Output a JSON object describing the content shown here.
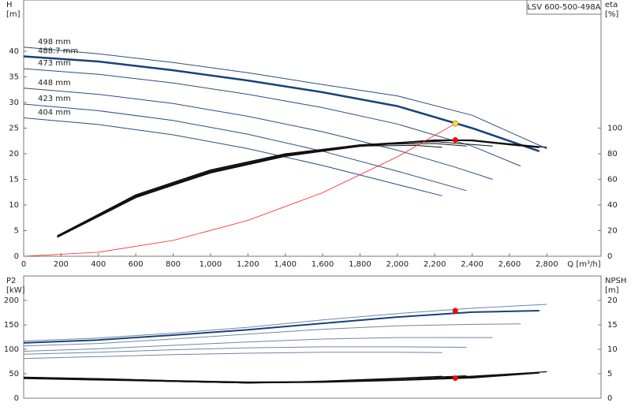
{
  "chart_data": [
    {
      "type": "line",
      "title": "LSV 600-500-498A",
      "ylabel": [
        "H",
        "[m]"
      ],
      "y2label": [
        "eta",
        "[%]"
      ],
      "xlabel": "Q [m³/h]",
      "xlim": [
        0,
        3090
      ],
      "ylim": [
        0,
        50
      ],
      "y2lim": [
        0,
        200
      ],
      "xticks": [
        0,
        200,
        400,
        600,
        800,
        {
          "value": 1000,
          "label": "1,000"
        },
        {
          "value": 1200,
          "label": "1,200"
        },
        {
          "value": 1400,
          "label": "1,400"
        },
        {
          "value": 1600,
          "label": "1,600"
        },
        {
          "value": 1800,
          "label": "1,800"
        },
        {
          "value": 2000,
          "label": "2,000"
        },
        {
          "value": 2200,
          "label": "2,200"
        },
        {
          "value": 2400,
          "label": "2,400"
        },
        {
          "value": 2600,
          "label": "2,600"
        },
        {
          "value": 2800,
          "label": "2,800"
        }
      ],
      "yticks": [
        0,
        5,
        10,
        15,
        20,
        25,
        30,
        35,
        40
      ],
      "y2ticks": [
        0,
        20,
        40,
        60,
        80,
        100
      ],
      "series": [
        {
          "name": "498 mm",
          "color": "#2b4f7e",
          "width": 1,
          "axis": "y",
          "x": [
            0,
            400,
            800,
            1200,
            1600,
            2000,
            2400,
            2800
          ],
          "values": [
            40.8,
            39.5,
            37.8,
            35.8,
            33.5,
            31.3,
            27.5,
            21
          ]
        },
        {
          "name": "488.7 mm",
          "color": "#17427a",
          "width": 2.5,
          "axis": "y",
          "x": [
            0,
            400,
            800,
            1200,
            1600,
            2000,
            2400,
            2760
          ],
          "values": [
            39,
            38,
            36.3,
            34.3,
            32,
            29.3,
            25,
            20.5
          ]
        },
        {
          "name": "473 mm",
          "color": "#2b4f7e",
          "width": 1,
          "axis": "y",
          "x": [
            0,
            400,
            800,
            1200,
            1600,
            2000,
            2400,
            2660
          ],
          "values": [
            36.6,
            35.5,
            33.8,
            31.6,
            29,
            25.8,
            21.5,
            17.6
          ]
        },
        {
          "name": "448 mm",
          "color": "#2b4f7e",
          "width": 1,
          "axis": "y",
          "x": [
            0,
            400,
            800,
            1200,
            1600,
            2000,
            2300,
            2510
          ],
          "values": [
            32.8,
            31.6,
            29.8,
            27.3,
            24.3,
            20.7,
            17.5,
            15
          ]
        },
        {
          "name": "423 mm",
          "color": "#2b4f7e",
          "width": 1,
          "axis": "y",
          "x": [
            0,
            400,
            800,
            1200,
            1600,
            2000,
            2370
          ],
          "values": [
            29.7,
            28.4,
            26.5,
            23.8,
            20.5,
            16.6,
            12.8
          ]
        },
        {
          "name": "404 mm",
          "color": "#2b4f7e",
          "width": 1,
          "axis": "y",
          "x": [
            0,
            400,
            800,
            1200,
            1600,
            2000,
            2240
          ],
          "values": [
            27,
            25.7,
            23.7,
            21,
            17.7,
            14,
            11.8
          ]
        },
        {
          "color": "#111111",
          "width": 1.2,
          "axis": "y2",
          "x": [
            180,
            600,
            1000,
            1400,
            1800,
            2200,
            2400,
            2800
          ],
          "values": [
            15,
            46,
            65,
            78,
            86,
            90,
            90.5,
            85
          ]
        },
        {
          "color": "#111111",
          "width": 2,
          "axis": "y2",
          "x": [
            180,
            600,
            1000,
            1400,
            1800,
            2200,
            2400,
            2760
          ],
          "values": [
            15,
            46,
            65.5,
            78.5,
            86,
            90.5,
            90.5,
            85
          ]
        },
        {
          "color": "#111111",
          "width": 1,
          "axis": "y2",
          "x": [
            180,
            600,
            1000,
            1400,
            1800,
            2200,
            2400,
            2660
          ],
          "values": [
            15,
            46.5,
            66,
            79,
            87,
            90.5,
            90,
            86
          ]
        },
        {
          "color": "#111111",
          "width": 1,
          "axis": "y2",
          "x": [
            180,
            600,
            1000,
            1400,
            1800,
            2200,
            2510
          ],
          "values": [
            15.5,
            47,
            66.5,
            79.5,
            87,
            89.5,
            86
          ]
        },
        {
          "color": "#111111",
          "width": 1,
          "axis": "y2",
          "x": [
            180,
            600,
            1000,
            1400,
            1800,
            2200,
            2370
          ],
          "values": [
            16,
            47.5,
            67,
            80,
            87,
            88,
            86
          ]
        },
        {
          "color": "#111111",
          "width": 1,
          "axis": "y2",
          "x": [
            180,
            600,
            1000,
            1400,
            1800,
            2100,
            2240
          ],
          "values": [
            16,
            48,
            67.5,
            80,
            86,
            86.5,
            85
          ]
        },
        {
          "color": "#ff2020",
          "width": 0.8,
          "axis": "y",
          "x": [
            0,
            400,
            800,
            1200,
            1600,
            2000,
            2310
          ],
          "values": [
            0,
            0.78,
            3.1,
            7,
            12.4,
            19.4,
            25.9
          ]
        }
      ],
      "points": [
        {
          "x": 2310,
          "value": 25.9,
          "color": "#ffd83a",
          "axis": "y"
        },
        {
          "x": 2310,
          "value": 90.8,
          "color": "#ff0000",
          "axis": "y2"
        }
      ]
    },
    {
      "type": "line",
      "ylabel": [
        "P2",
        "[kW]"
      ],
      "y2label": [
        "NPSH",
        "[m]"
      ],
      "xlim": [
        0,
        3090
      ],
      "ylim": [
        0,
        250
      ],
      "y2lim": [
        0,
        25
      ],
      "yticks": [
        0,
        50,
        100,
        150,
        200
      ],
      "y2ticks": [
        0,
        5,
        10,
        15,
        20
      ],
      "series": [
        {
          "color": "#6f86a6",
          "width": 1,
          "axis": "y",
          "x": [
            0,
            400,
            800,
            1200,
            1600,
            2000,
            2400,
            2800
          ],
          "values": [
            117,
            123,
            133,
            145,
            160,
            173,
            184,
            192
          ]
        },
        {
          "color": "#17427a",
          "width": 2,
          "axis": "y",
          "x": [
            0,
            400,
            800,
            1200,
            1600,
            2000,
            2400,
            2760
          ],
          "values": [
            113,
            119,
            129,
            140,
            153,
            166,
            176,
            179
          ]
        },
        {
          "color": "#6f86a6",
          "width": 1,
          "axis": "y",
          "x": [
            0,
            400,
            800,
            1200,
            1600,
            2000,
            2400,
            2660
          ],
          "values": [
            107,
            112,
            121,
            131,
            141,
            148,
            151,
            152
          ]
        },
        {
          "color": "#6f86a6",
          "width": 1,
          "axis": "y",
          "x": [
            0,
            400,
            800,
            1200,
            1600,
            2000,
            2510
          ],
          "values": [
            96,
            101,
            108,
            115,
            121,
            124,
            124
          ]
        },
        {
          "color": "#6f86a6",
          "width": 1,
          "axis": "y",
          "x": [
            0,
            400,
            800,
            1200,
            1600,
            2000,
            2370
          ],
          "values": [
            90,
            94,
            99,
            103,
            105,
            105,
            104
          ]
        },
        {
          "color": "#6f86a6",
          "width": 1,
          "axis": "y",
          "x": [
            0,
            400,
            800,
            1200,
            1600,
            2000,
            2240
          ],
          "values": [
            81,
            85,
            89,
            92,
            94,
            94,
            93
          ]
        },
        {
          "color": "#111111",
          "width": 1.2,
          "axis": "y2",
          "x": [
            0,
            400,
            800,
            1200,
            1600,
            2000,
            2400,
            2800
          ],
          "values": [
            4.3,
            4,
            3.6,
            3.3,
            3.4,
            3.8,
            4.5,
            5.4
          ]
        },
        {
          "color": "#111111",
          "width": 2,
          "axis": "y2",
          "x": [
            0,
            400,
            800,
            1200,
            1600,
            2000,
            2400,
            2760
          ],
          "values": [
            4.2,
            3.9,
            3.5,
            3.2,
            3.3,
            3.7,
            4.2,
            5.2
          ]
        },
        {
          "color": "#111111",
          "width": 1,
          "axis": "y2",
          "x": [
            0,
            400,
            800,
            1200,
            1600,
            2000,
            2400,
            2660
          ],
          "values": [
            4.2,
            3.9,
            3.5,
            3.1,
            3.3,
            3.7,
            4.3,
            4.9
          ]
        },
        {
          "color": "#111111",
          "width": 1,
          "axis": "y2",
          "x": [
            0,
            400,
            800,
            1200,
            1600,
            2000,
            2510
          ],
          "values": [
            4.1,
            3.8,
            3.4,
            3.1,
            3.3,
            3.8,
            4.6
          ]
        },
        {
          "color": "#111111",
          "width": 1,
          "axis": "y2",
          "x": [
            0,
            400,
            800,
            1200,
            1600,
            2000,
            2370
          ],
          "values": [
            4.1,
            3.8,
            3.4,
            3.1,
            3.4,
            4,
            4.6
          ]
        },
        {
          "color": "#111111",
          "width": 1,
          "axis": "y2",
          "x": [
            0,
            400,
            800,
            1200,
            1600,
            2000,
            2240
          ],
          "values": [
            4,
            3.7,
            3.4,
            3.1,
            3.5,
            4.1,
            4.5
          ]
        }
      ],
      "points": [
        {
          "x": 2310,
          "value": 179,
          "color": "#ff0000",
          "axis": "y"
        },
        {
          "x": 2310,
          "value": 4.1,
          "color": "#ff0000",
          "axis": "y2"
        }
      ]
    }
  ]
}
